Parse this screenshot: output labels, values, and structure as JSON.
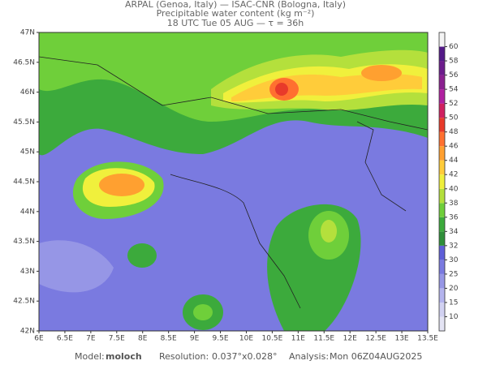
{
  "header": {
    "line1": "ARPAL (Genoa, Italy)  —  ISAC-CNR (Bologna, Italy)",
    "line2": "Precipitable water content (kg m⁻²)",
    "line3": "18 UTC Tue 05 AUG  —  τ = 36h"
  },
  "map": {
    "lat_labels": [
      "42N",
      "42.5N",
      "43N",
      "43.5N",
      "44N",
      "44.5N",
      "45N",
      "45.5N",
      "46N",
      "46.5N",
      "47N"
    ],
    "lon_labels": [
      "6E",
      "6.5E",
      "7E",
      "7.5E",
      "8E",
      "8.5E",
      "9E",
      "9.5E",
      "10E",
      "10.5E",
      "11E",
      "11.5E",
      "12E",
      "12.5E",
      "13E",
      "13.5E"
    ]
  },
  "colorbar": {
    "levels": [
      10,
      15,
      20,
      25,
      30,
      32,
      34,
      36,
      38,
      40,
      42,
      44,
      46,
      48,
      50,
      52,
      54,
      56,
      58,
      60
    ],
    "colors": [
      "#e4e4f4",
      "#d2d2f2",
      "#b4b4ee",
      "#9696e6",
      "#7a7ae0",
      "#5f5fd8",
      "#2f8f3a",
      "#3caa3c",
      "#6fcf3a",
      "#b4e03c",
      "#f0f03c",
      "#ffcc3a",
      "#ffa030",
      "#ff7030",
      "#e83a2a",
      "#d02060",
      "#b020a0",
      "#8a2090",
      "#6c1c8c",
      "#541a88",
      "#f4f4f4"
    ]
  },
  "footer": {
    "model_label": "Model:",
    "model": "moloch",
    "resolution_label": "Resolution:",
    "resolution": "0.037°x0.028°",
    "analysis_label": "Analysis:",
    "analysis": "Mon 06Z04AUG2025"
  }
}
